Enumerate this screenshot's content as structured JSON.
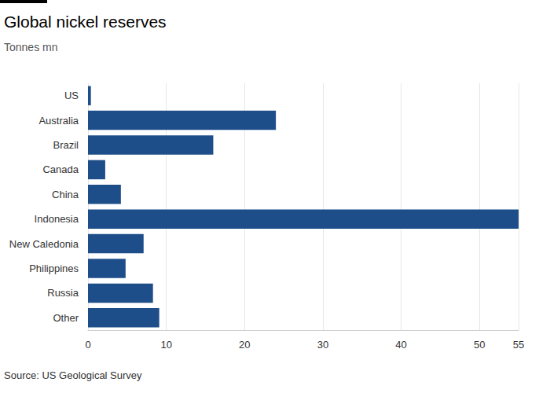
{
  "chart_data": {
    "type": "bar",
    "orientation": "horizontal",
    "title": "Global nickel reserves",
    "subtitle": "Tonnes mn",
    "source": "Source: US Geological Survey",
    "categories": [
      "US",
      "Australia",
      "Brazil",
      "Canada",
      "China",
      "Indonesia",
      "New Caledonia",
      "Philippines",
      "Russia",
      "Other"
    ],
    "values": [
      0.37,
      24,
      16,
      2.2,
      4.2,
      55,
      7.1,
      4.8,
      8.3,
      9.1
    ],
    "color": "#1d4e89",
    "xlim": [
      0,
      55
    ],
    "xticks": [
      0,
      10,
      20,
      30,
      40,
      50
    ],
    "grid": true
  }
}
